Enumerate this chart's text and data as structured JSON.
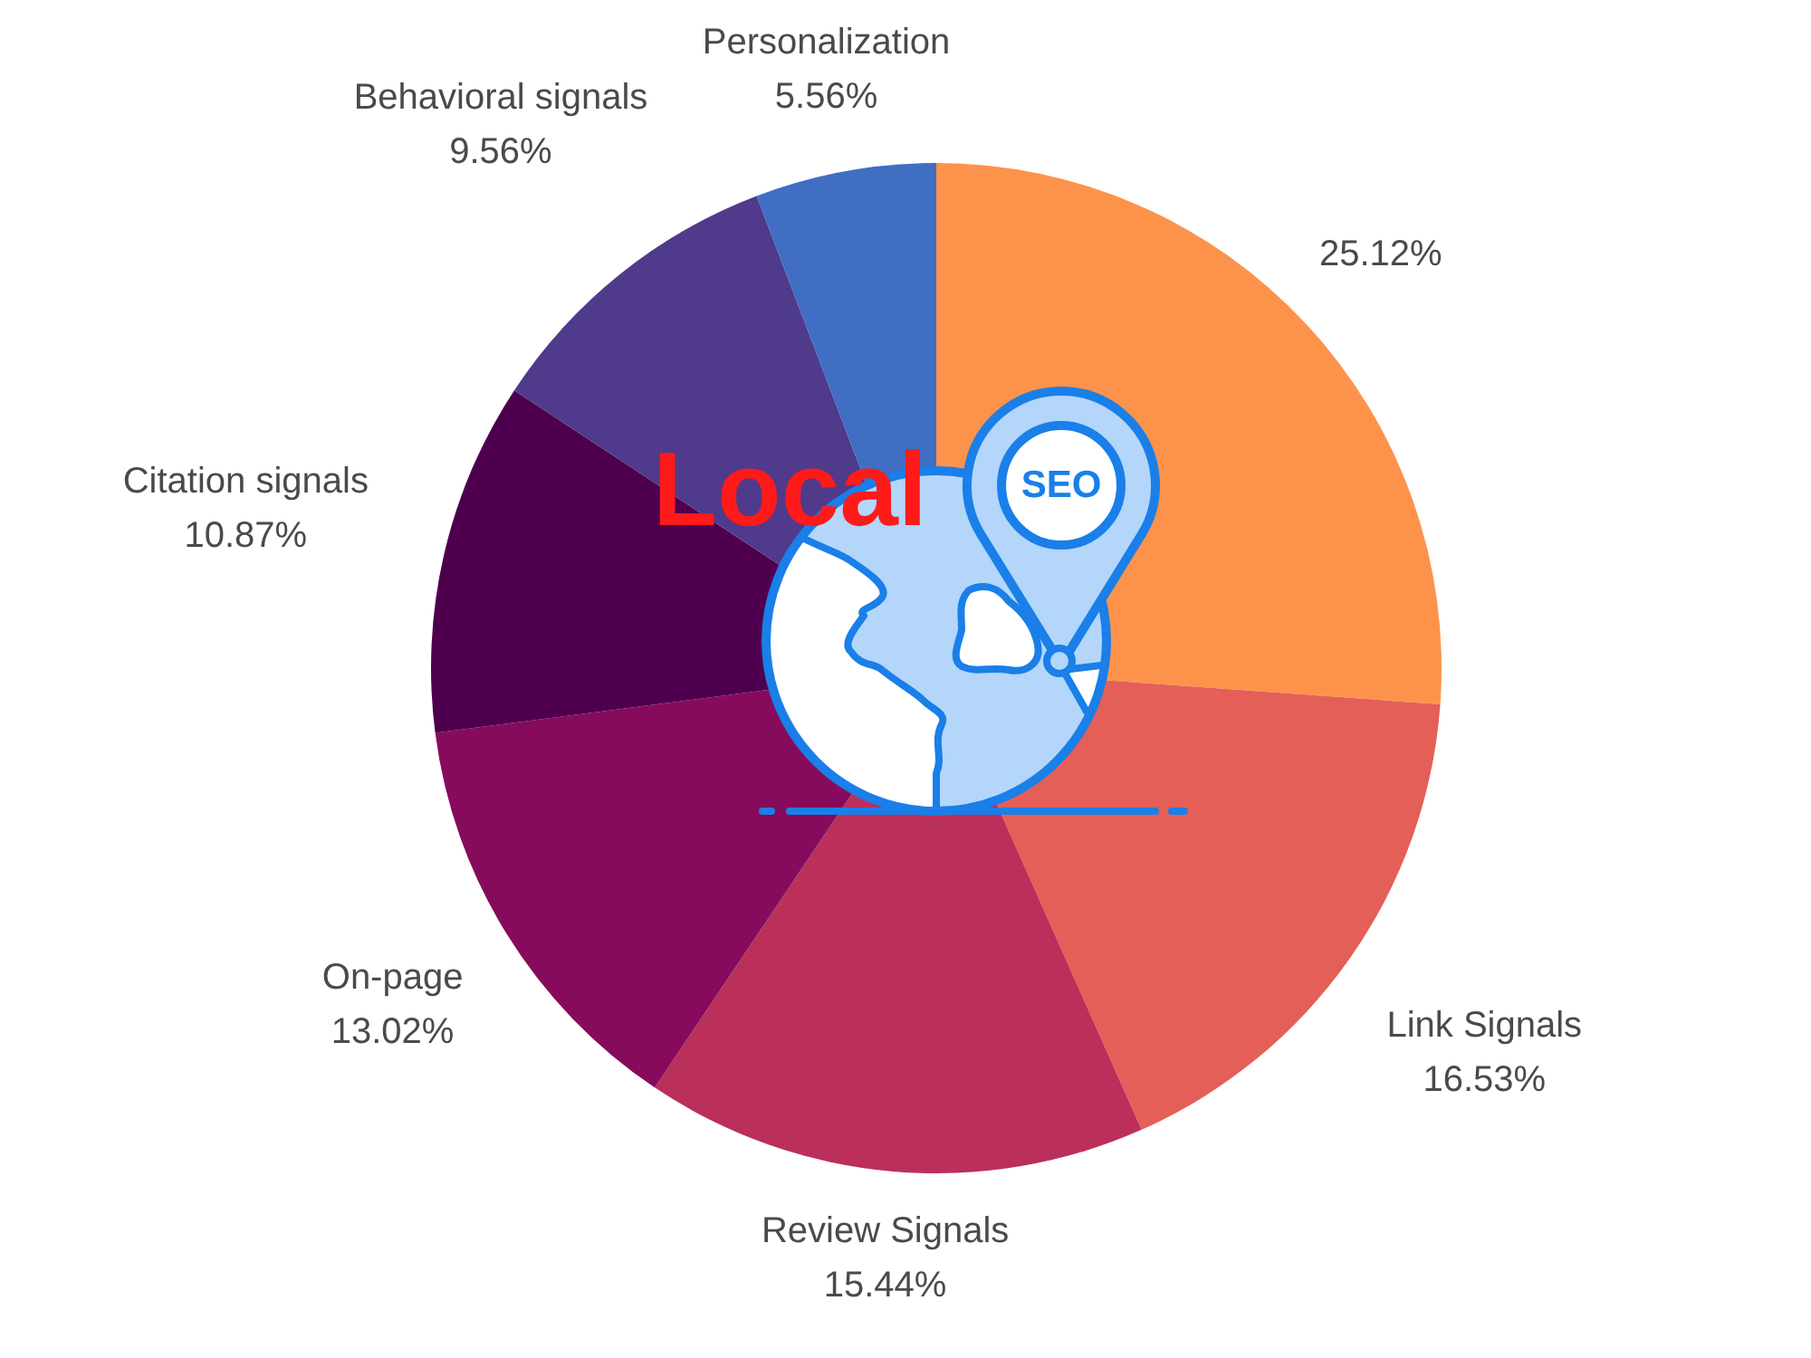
{
  "chart_data": {
    "type": "pie",
    "categories": [
      null,
      "Link Signals",
      "Review Signals",
      "On-page",
      "Citation signals",
      "Behavioral signals",
      "Personalization"
    ],
    "values": [
      25.12,
      16.53,
      15.44,
      13.02,
      10.87,
      9.56,
      5.56
    ],
    "value_labels": [
      "25.12%",
      "16.53%",
      "15.44%",
      "13.02%",
      "10.87%",
      "9.56%",
      "5.56%"
    ],
    "colors": [
      "#fd934b",
      "#e45f57",
      "#bb2f5b",
      "#870b5c",
      "#4e004f",
      "#4f3a8c",
      "#3f6ec3"
    ],
    "annotations": [
      "Local",
      "SEO"
    ]
  }
}
